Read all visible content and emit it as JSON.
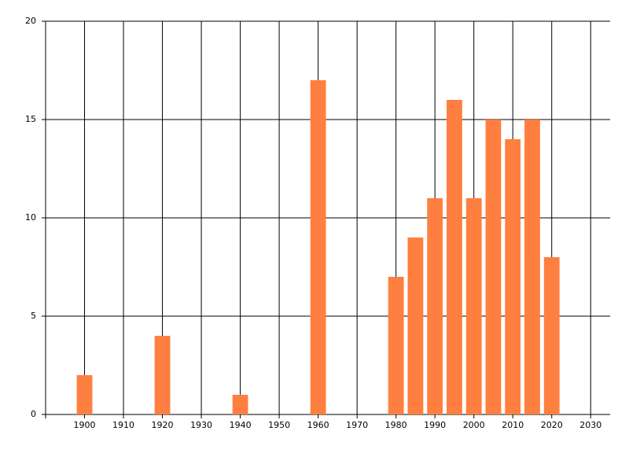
{
  "chart_data": {
    "type": "bar",
    "x": [
      1900,
      1920,
      1940,
      1960,
      1980,
      1985,
      1990,
      1995,
      2000,
      2005,
      2010,
      2015,
      2020
    ],
    "values": [
      2,
      4,
      1,
      17,
      7,
      9,
      11,
      16,
      11,
      15,
      14,
      15,
      8
    ],
    "color": "#fe7f3f",
    "xlim": [
      1890,
      2035
    ],
    "xticks": [
      1900,
      1910,
      1920,
      1930,
      1940,
      1950,
      1960,
      1970,
      1980,
      1990,
      2000,
      2010,
      2020,
      2030
    ],
    "ylim": [
      0,
      20
    ],
    "yticks": [
      0,
      5,
      10,
      15,
      20
    ],
    "grid": true
  }
}
